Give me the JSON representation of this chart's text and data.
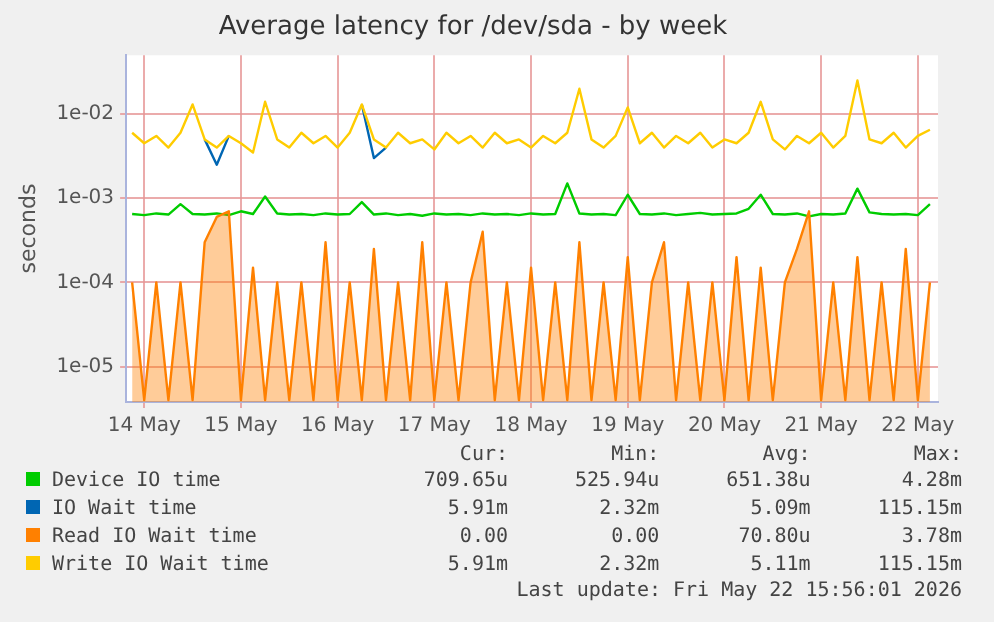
{
  "chart_data": {
    "type": "line",
    "title": "Average latency for /dev/sda - by week",
    "ylabel": "seconds",
    "x": [
      "2026-05-13T21:00",
      "2026-05-14T00:00",
      "2026-05-14T03:00",
      "2026-05-14T06:00",
      "2026-05-14T09:00",
      "2026-05-14T12:00",
      "2026-05-14T15:00",
      "2026-05-14T18:00",
      "2026-05-14T21:00",
      "2026-05-15T00:00",
      "2026-05-15T03:00",
      "2026-05-15T06:00",
      "2026-05-15T09:00",
      "2026-05-15T12:00",
      "2026-05-15T15:00",
      "2026-05-15T18:00",
      "2026-05-15T21:00",
      "2026-05-16T00:00",
      "2026-05-16T03:00",
      "2026-05-16T06:00",
      "2026-05-16T09:00",
      "2026-05-16T12:00",
      "2026-05-16T15:00",
      "2026-05-16T18:00",
      "2026-05-16T21:00",
      "2026-05-17T00:00",
      "2026-05-17T03:00",
      "2026-05-17T06:00",
      "2026-05-17T09:00",
      "2026-05-17T12:00",
      "2026-05-17T15:00",
      "2026-05-17T18:00",
      "2026-05-17T21:00",
      "2026-05-18T00:00",
      "2026-05-18T03:00",
      "2026-05-18T06:00",
      "2026-05-18T09:00",
      "2026-05-18T12:00",
      "2026-05-18T15:00",
      "2026-05-18T18:00",
      "2026-05-18T21:00",
      "2026-05-19T00:00",
      "2026-05-19T03:00",
      "2026-05-19T06:00",
      "2026-05-19T09:00",
      "2026-05-19T12:00",
      "2026-05-19T15:00",
      "2026-05-19T18:00",
      "2026-05-19T21:00",
      "2026-05-20T00:00",
      "2026-05-20T03:00",
      "2026-05-20T06:00",
      "2026-05-20T09:00",
      "2026-05-20T12:00",
      "2026-05-20T15:00",
      "2026-05-20T18:00",
      "2026-05-20T21:00",
      "2026-05-21T00:00",
      "2026-05-21T03:00",
      "2026-05-21T06:00",
      "2026-05-21T09:00",
      "2026-05-21T12:00",
      "2026-05-21T15:00",
      "2026-05-21T18:00",
      "2026-05-21T21:00",
      "2026-05-22T00:00",
      "2026-05-22T03:00"
    ],
    "series": [
      {
        "name": "Device IO time",
        "color": "#00cc00",
        "values": [
          0.00065,
          0.00063,
          0.00066,
          0.00064,
          0.00085,
          0.00065,
          0.00064,
          0.00066,
          0.00063,
          0.0007,
          0.00065,
          0.00105,
          0.00066,
          0.00064,
          0.00065,
          0.00063,
          0.00066,
          0.00064,
          0.00065,
          0.0009,
          0.00064,
          0.00066,
          0.00063,
          0.00065,
          0.00062,
          0.00066,
          0.00064,
          0.00065,
          0.00063,
          0.00066,
          0.00064,
          0.00065,
          0.00063,
          0.00066,
          0.00064,
          0.00065,
          0.0015,
          0.00066,
          0.00064,
          0.00065,
          0.00063,
          0.0011,
          0.00065,
          0.00064,
          0.00066,
          0.00063,
          0.00065,
          0.00067,
          0.00064,
          0.00065,
          0.00066,
          0.00075,
          0.0011,
          0.00065,
          0.00064,
          0.00066,
          0.00061,
          0.00065,
          0.00064,
          0.00066,
          0.0013,
          0.00068,
          0.00065,
          0.00064,
          0.00065,
          0.00063,
          0.00085
        ]
      },
      {
        "name": "IO Wait time",
        "color": "#0066b3",
        "values": [
          null,
          null,
          null,
          null,
          null,
          null,
          0.005,
          0.0025,
          0.0055,
          null,
          null,
          null,
          null,
          null,
          null,
          null,
          null,
          null,
          null,
          0.013,
          0.003,
          0.004,
          null,
          null,
          null,
          null,
          null,
          null,
          null,
          null,
          null,
          null,
          null,
          null,
          null,
          null,
          null,
          null,
          null,
          null,
          null,
          null,
          null,
          null,
          null,
          null,
          null,
          null,
          null,
          null,
          null,
          null,
          null,
          null,
          null,
          null,
          null,
          null,
          null,
          null,
          null,
          null,
          null,
          null,
          null,
          null,
          null
        ]
      },
      {
        "name": "Read IO Wait time",
        "color": "#ff8000",
        "type": "area",
        "values": [
          0.0001,
          4e-06,
          0.0001,
          4e-06,
          0.0001,
          4e-06,
          0.0003,
          0.0006,
          0.0007,
          4e-06,
          0.00015,
          4e-06,
          0.0001,
          4e-06,
          0.0001,
          4e-06,
          0.0003,
          4e-06,
          0.0001,
          4e-06,
          0.00025,
          4e-06,
          0.0001,
          4e-06,
          0.0003,
          4e-06,
          0.0001,
          4e-06,
          0.0001,
          0.0004,
          4e-06,
          0.0001,
          4e-06,
          0.00015,
          4e-06,
          0.0001,
          4e-06,
          0.0003,
          4e-06,
          0.0001,
          4e-06,
          0.0002,
          4e-06,
          0.0001,
          0.0003,
          4e-06,
          0.0001,
          4e-06,
          0.0001,
          4e-06,
          0.0002,
          4e-06,
          0.00015,
          4e-06,
          0.0001,
          0.00025,
          0.0007,
          4e-06,
          0.0001,
          4e-06,
          0.0002,
          4e-06,
          0.0001,
          4e-06,
          0.00025,
          4e-06,
          0.0001
        ]
      },
      {
        "name": "Write IO Wait time",
        "color": "#ffcc00",
        "values": [
          0.006,
          0.0045,
          0.0055,
          0.004,
          0.006,
          0.013,
          0.005,
          0.004,
          0.0055,
          0.0045,
          0.0035,
          0.014,
          0.005,
          0.004,
          0.006,
          0.0045,
          0.0055,
          0.004,
          0.006,
          0.013,
          0.005,
          0.004,
          0.006,
          0.0045,
          0.005,
          0.0038,
          0.006,
          0.0045,
          0.0055,
          0.004,
          0.006,
          0.0045,
          0.005,
          0.004,
          0.0055,
          0.0045,
          0.006,
          0.02,
          0.005,
          0.004,
          0.0055,
          0.012,
          0.0045,
          0.006,
          0.004,
          0.0055,
          0.0045,
          0.006,
          0.004,
          0.005,
          0.0045,
          0.006,
          0.014,
          0.005,
          0.0038,
          0.0055,
          0.0045,
          0.006,
          0.004,
          0.0055,
          0.025,
          0.005,
          0.0045,
          0.006,
          0.004,
          0.0055,
          0.0065
        ]
      }
    ],
    "log": "y",
    "ylim": [
      3.8e-06,
      0.05
    ],
    "yticks": [
      {
        "value": 1e-05,
        "label": "1e-05"
      },
      {
        "value": 0.0001,
        "label": "1e-04"
      },
      {
        "value": 0.001,
        "label": "1e-03"
      },
      {
        "value": 0.01,
        "label": "1e-02"
      }
    ],
    "xlim": [
      "2026-05-13T19:30",
      "2026-05-22T05:00"
    ],
    "xticks": [
      {
        "value": "2026-05-14",
        "label": "14 May"
      },
      {
        "value": "2026-05-15",
        "label": "15 May"
      },
      {
        "value": "2026-05-16",
        "label": "16 May"
      },
      {
        "value": "2026-05-17",
        "label": "17 May"
      },
      {
        "value": "2026-05-18",
        "label": "18 May"
      },
      {
        "value": "2026-05-19",
        "label": "19 May"
      },
      {
        "value": "2026-05-20",
        "label": "20 May"
      },
      {
        "value": "2026-05-21",
        "label": "21 May"
      },
      {
        "value": "2026-05-22",
        "label": "22 May"
      }
    ],
    "grid": true,
    "legend": "bottom",
    "marker": "none",
    "line_style": "solid",
    "annotations": [
      "Cur:",
      "Min:",
      "Avg:",
      "Max:",
      "709.65u",
      "525.94u",
      "651.38u",
      "4.28m",
      "5.91m",
      "2.32m",
      "5.09m",
      "115.15m",
      "0.00",
      "0.00",
      "70.80u",
      "3.78m",
      "5.91m",
      "2.32m",
      "5.11m",
      "115.15m",
      "Last update: Fri May 22 15:56:01 2026"
    ]
  }
}
